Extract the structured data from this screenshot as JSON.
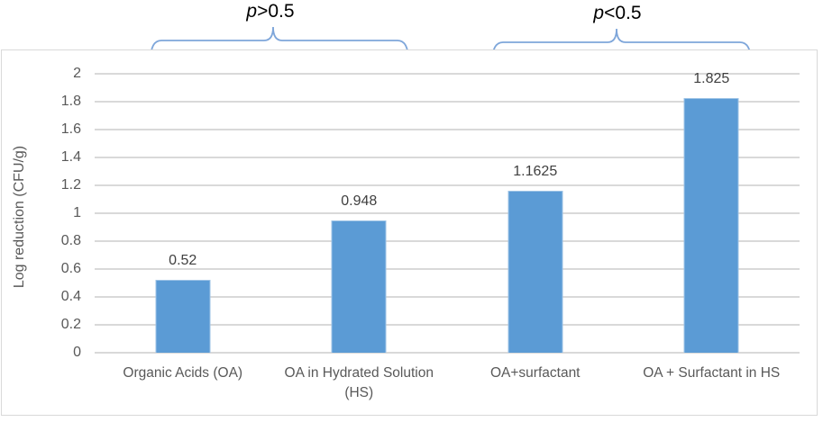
{
  "annotations": {
    "left": {
      "symbol": "p",
      "comparison": ">0.5",
      "covers": [
        "Organic Acids (OA)",
        "OA in Hydrated Solution (HS)"
      ]
    },
    "right": {
      "symbol": "p",
      "comparison": "<0.5",
      "covers": [
        "OA+surfactant",
        "OA + Surfactant in HS"
      ]
    }
  },
  "chart_data": {
    "type": "bar",
    "title": "",
    "categories": [
      "Organic Acids (OA)",
      "OA in Hydrated Solution (HS)",
      "OA+surfactant",
      "OA + Surfactant in HS"
    ],
    "values": [
      0.52,
      0.948,
      1.1625,
      1.825
    ],
    "data_labels": [
      "0.52",
      "0.948",
      "1.1625",
      "1.825"
    ],
    "xlabel": "",
    "ylabel": "Log reduction (CFU/g)",
    "ylim": [
      0,
      2
    ],
    "ytick_labels": [
      "0",
      "0.2",
      "0.4",
      "0.6",
      "0.8",
      "1",
      "1.2",
      "1.4",
      "1.6",
      "1.8",
      "2"
    ],
    "grid": true,
    "legend": "none",
    "bar_color": "#5B9BD5",
    "bar_edge_color": "#9DC3E6",
    "gridline_color": "#D9D9D9",
    "axis_text_color": "#595959",
    "data_label_color": "#404040",
    "brace_color": "#7EA6DA",
    "frame_border_color": "#D9D9D9"
  }
}
